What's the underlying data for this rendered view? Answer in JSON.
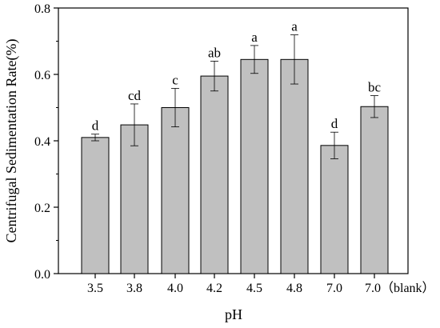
{
  "chart_data": {
    "type": "bar",
    "xlabel": "pH",
    "ylabel": "Centrifugal Sedimentation Rate(%)",
    "ylim": [
      0,
      0.8
    ],
    "yticks": [
      "0.0",
      "0.2",
      "0.4",
      "0.6",
      "0.8"
    ],
    "categories": [
      "3.5",
      "3.8",
      "4.0",
      "4.2",
      "4.5",
      "4.8",
      "7.0",
      "7.0（blank）"
    ],
    "values": [
      0.41,
      0.448,
      0.5,
      0.595,
      0.645,
      0.645,
      0.386,
      0.503
    ],
    "errors": [
      0.01,
      0.063,
      0.058,
      0.045,
      0.042,
      0.074,
      0.04,
      0.033
    ],
    "significance": [
      "d",
      "cd",
      "c",
      "ab",
      "a",
      "a",
      "d",
      "bc"
    ],
    "grid": false,
    "colors": {
      "bar_fill": "#c0c0c0",
      "bar_stroke": "#000000",
      "axis": "#000000"
    }
  }
}
